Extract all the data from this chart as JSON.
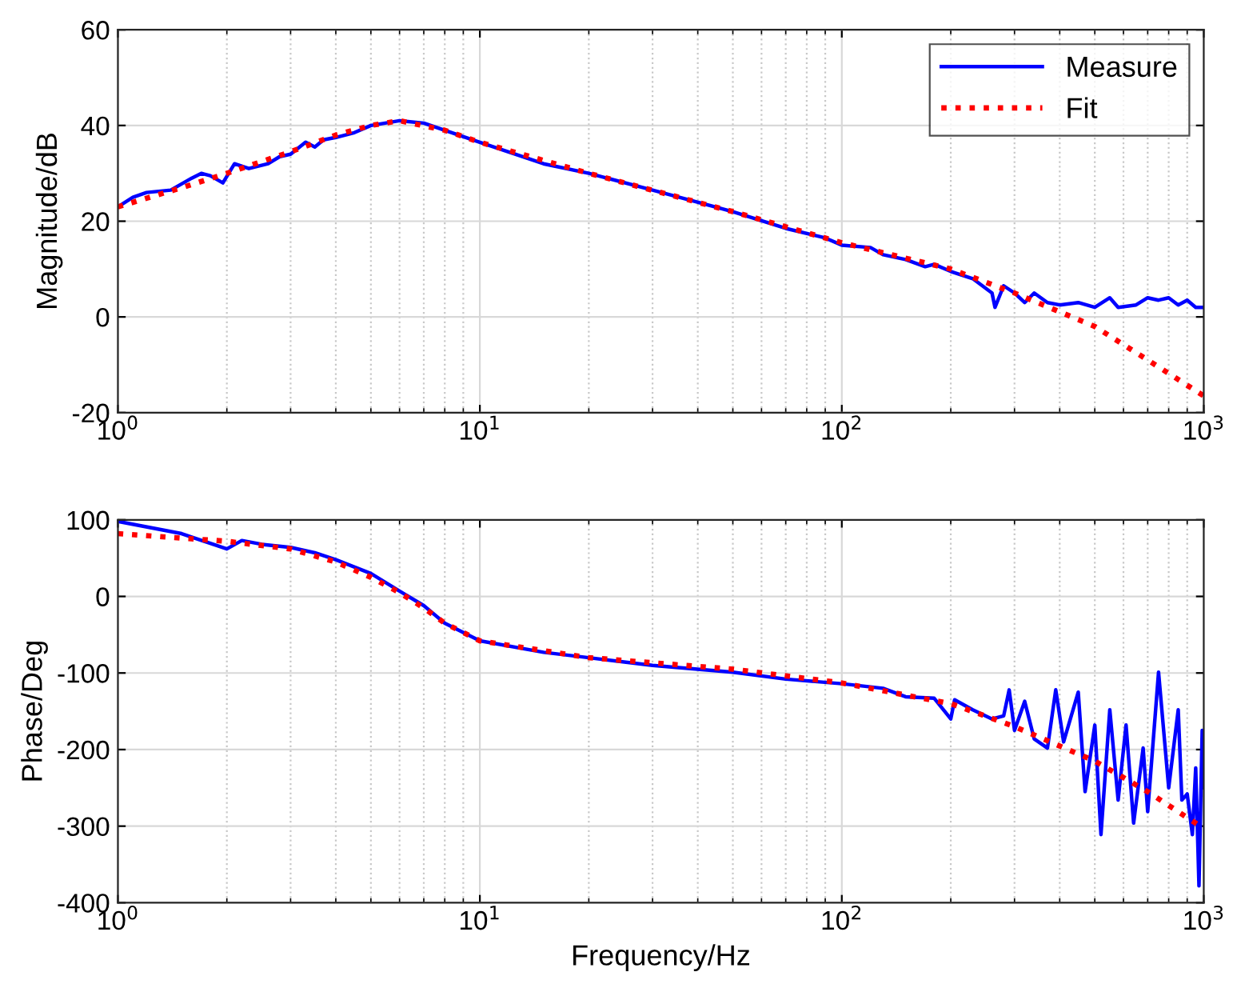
{
  "chart_data": [
    {
      "type": "line",
      "ylabel": "Magnitude/dB",
      "log": "x",
      "xlim": [
        1,
        1000
      ],
      "ylim": [
        -20,
        60
      ],
      "xticks": [
        {
          "value": 1,
          "label": "10$^{0}$"
        },
        {
          "value": 10,
          "label": "10$^{1}$"
        },
        {
          "value": 100,
          "label": "10$^{2}$"
        },
        {
          "value": 1000,
          "label": "10$^{3}$"
        }
      ],
      "yticks": [
        -20,
        0,
        20,
        40,
        60
      ],
      "grid": true,
      "legend": "top right",
      "series": [
        {
          "name": "Measure",
          "color": "#0000ff",
          "line_style": "solid",
          "x": [
            1,
            1.1,
            1.2,
            1.4,
            1.6,
            1.7,
            1.8,
            1.95,
            2.1,
            2.3,
            2.6,
            2.8,
            3,
            3.3,
            3.5,
            3.7,
            4,
            4.5,
            5,
            6,
            7,
            8,
            10,
            15,
            20,
            30,
            50,
            70,
            90,
            100,
            120,
            130,
            150,
            170,
            180,
            200,
            230,
            260,
            265,
            280,
            300,
            320,
            340,
            370,
            400,
            450,
            500,
            550,
            580,
            650,
            700,
            750,
            800,
            850,
            900,
            950,
            1000
          ],
          "values": [
            23,
            25,
            26,
            26.5,
            29,
            30,
            29.5,
            28,
            32,
            31,
            32,
            33.5,
            34,
            36.5,
            35.5,
            37,
            37.5,
            38.5,
            40,
            41,
            40.5,
            39,
            36.5,
            32,
            30,
            26.5,
            22,
            18.5,
            16.5,
            15,
            14.5,
            13,
            12,
            10.5,
            11,
            9.5,
            8,
            5,
            2,
            6.5,
            5,
            3,
            5,
            3,
            2.5,
            3,
            2,
            4,
            2,
            2.5,
            4,
            3.5,
            4,
            2.5,
            3.5,
            2,
            2
          ]
        },
        {
          "name": "Fit",
          "color": "#ff0000",
          "line_style": "dotted",
          "x": [
            1,
            1.5,
            2,
            3,
            4,
            5,
            6,
            8,
            10,
            20,
            50,
            100,
            200,
            300,
            500,
            700,
            1000
          ],
          "values": [
            23,
            27,
            30,
            34.5,
            38,
            40,
            41,
            39,
            36.5,
            30,
            22,
            15.5,
            10,
            5,
            -2,
            -9,
            -16.5
          ]
        }
      ]
    },
    {
      "type": "line",
      "xlabel": "Frequency/Hz",
      "ylabel": "Phase/Deg",
      "log": "x",
      "xlim": [
        1,
        1000
      ],
      "ylim": [
        -400,
        100
      ],
      "xticks": [
        {
          "value": 1,
          "label": "10$^{0}$"
        },
        {
          "value": 10,
          "label": "10$^{1}$"
        },
        {
          "value": 100,
          "label": "10$^{2}$"
        },
        {
          "value": 1000,
          "label": "10$^{3}$"
        }
      ],
      "yticks": [
        -400,
        -300,
        -200,
        -100,
        0,
        100
      ],
      "grid": true,
      "series": [
        {
          "color": "#0000ff",
          "line_style": "solid",
          "x": [
            1,
            1.5,
            2,
            2.2,
            2.5,
            3,
            3.5,
            4,
            5,
            6,
            7,
            8,
            10,
            15,
            20,
            30,
            50,
            70,
            100,
            130,
            150,
            180,
            200,
            205,
            230,
            260,
            280,
            290,
            300,
            320,
            340,
            370,
            390,
            410,
            450,
            470,
            500,
            520,
            550,
            580,
            610,
            640,
            680,
            700,
            750,
            800,
            850,
            870,
            900,
            930,
            950,
            970,
            990,
            1000
          ],
          "values": [
            98,
            82,
            62,
            73,
            68,
            64,
            57,
            48,
            30,
            7,
            -12,
            -35,
            -58,
            -73,
            -80,
            -90,
            -99,
            -108,
            -114,
            -120,
            -131,
            -133,
            -160,
            -135,
            -148,
            -160,
            -156,
            -122,
            -175,
            -137,
            -186,
            -198,
            -122,
            -190,
            -125,
            -255,
            -168,
            -311,
            -148,
            -266,
            -168,
            -296,
            -198,
            -281,
            -99,
            -250,
            -148,
            -266,
            -258,
            -311,
            -224,
            -378,
            -175,
            -250
          ]
        },
        {
          "color": "#ff0000",
          "line_style": "dotted",
          "x": [
            1,
            2,
            3,
            4,
            5,
            6,
            7,
            8,
            10,
            20,
            50,
            100,
            200,
            300,
            500,
            700,
            1000
          ],
          "values": [
            82,
            72,
            62,
            45,
            25,
            5,
            -15,
            -35,
            -58,
            -80,
            -95,
            -113,
            -140,
            -170,
            -215,
            -255,
            -303
          ]
        }
      ]
    }
  ]
}
